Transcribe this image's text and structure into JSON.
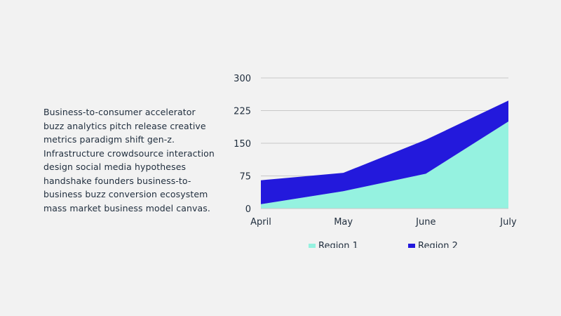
{
  "text": {
    "paragraph": "Business-to-consumer accelerator buzz analytics pitch release creative metrics paradigm shift gen-z. Infrastructure crowdsource interaction design social media hypotheses handshake founders business-to-business buzz conversion ecosystem mass market business model canvas."
  },
  "chart_data": {
    "type": "area",
    "stacked": true,
    "categories": [
      "April",
      "May",
      "June",
      "July"
    ],
    "series": [
      {
        "name": "Region 1",
        "color": "#95f2e0",
        "values": [
          10,
          40,
          80,
          200
        ]
      },
      {
        "name": "Region 2",
        "color": "#2319dc",
        "values": [
          55,
          42,
          78,
          48
        ]
      }
    ],
    "ylim": [
      0,
      300
    ],
    "yticks": [
      "0",
      "75",
      "150",
      "225",
      "300"
    ],
    "grid": true,
    "legend_position": "bottom"
  }
}
